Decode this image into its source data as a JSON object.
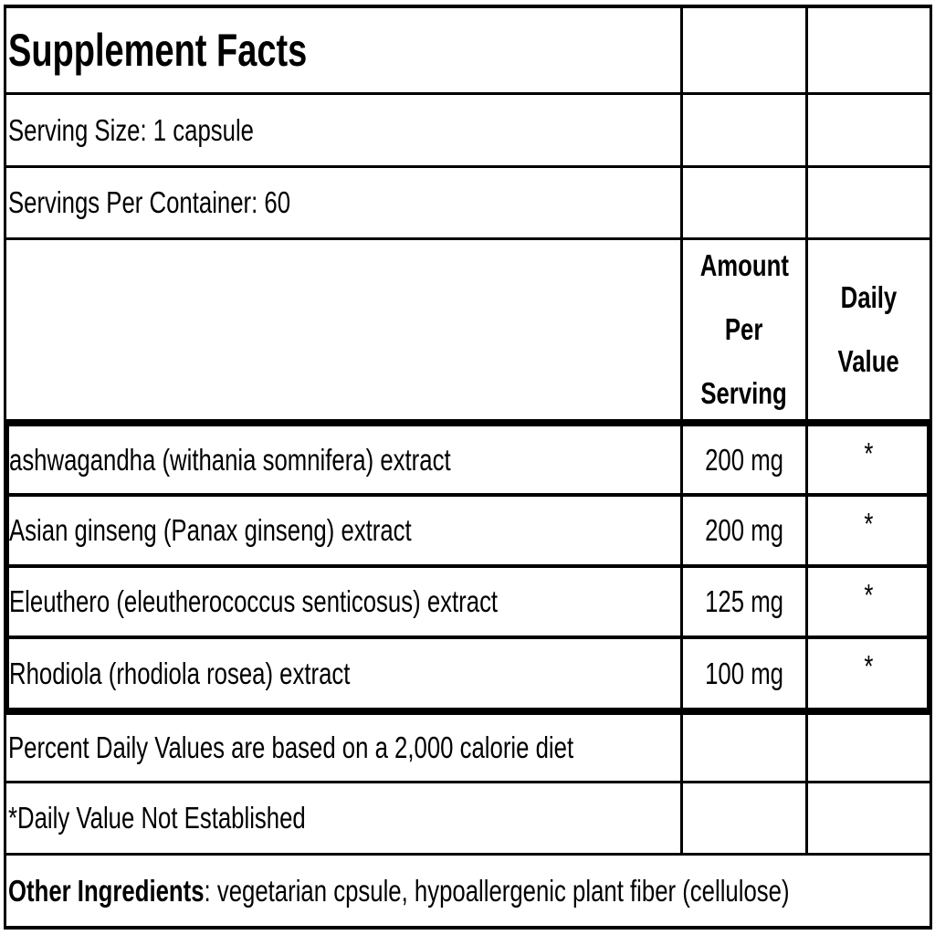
{
  "title": "Supplement Facts",
  "serving_size": "Serving Size: 1 capsule",
  "servings_per_container": "Servings Per Container: 60",
  "columns": {
    "amount": [
      "Amount",
      "Per",
      "Serving"
    ],
    "daily_value": [
      "Daily",
      "Value"
    ]
  },
  "ingredients": [
    {
      "name": "ashwagandha (withania somnifera) extract",
      "amount": "200 mg",
      "dv": "*"
    },
    {
      "name": "Asian ginseng (Panax ginseng) extract",
      "amount": "200 mg",
      "dv": "*"
    },
    {
      "name": "Eleuthero (eleutherococcus senticosus) extract",
      "amount": "125 mg",
      "dv": "*"
    },
    {
      "name": "Rhodiola (rhodiola rosea) extract",
      "amount": "100 mg",
      "dv": "*"
    }
  ],
  "footnotes": {
    "percent_dv": "Percent Daily Values are based on a 2,000 calorie diet",
    "dv_not_established": "*Daily Value Not Established"
  },
  "other_ingredients": {
    "label": "Other Ingredients",
    "text": ": vegetarian cpsule, hypoallergenic plant fiber (cellulose)"
  }
}
